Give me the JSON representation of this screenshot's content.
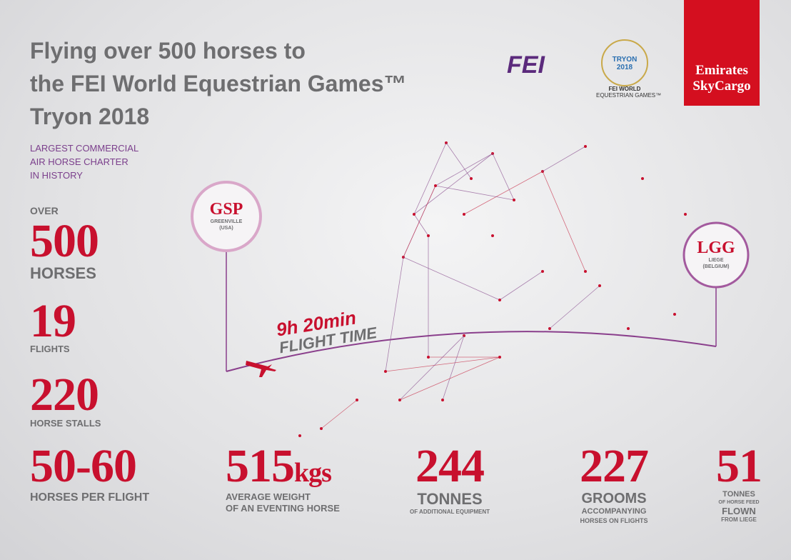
{
  "header": {
    "title": [
      "Flying over 500 horses to",
      "the FEI World Equestrian Games™",
      "Tryon 2018"
    ],
    "subtitle": [
      "LARGEST COMMERCIAL",
      "AIR HORSE CHARTER",
      "IN HISTORY"
    ]
  },
  "logos": {
    "fei": "FEI",
    "tryon": [
      "TRYON",
      "2018"
    ],
    "weg": [
      "FEI WORLD",
      "EQUESTRIAN GAMES™"
    ],
    "emirates": [
      "Emirates",
      "SkyCargo"
    ]
  },
  "route": {
    "origin": {
      "code": "GSP",
      "city": "GREENVILLE",
      "country": "(USA)"
    },
    "destination": {
      "code": "LGG",
      "city": "LIEGE",
      "country": "(BELGIUM)"
    },
    "duration": "9h 20min",
    "duration_label": "FLIGHT TIME"
  },
  "stats": {
    "horses": {
      "prefix": "OVER",
      "value": "500",
      "label": "HORSES"
    },
    "flights": {
      "value": "19",
      "label": "FLIGHTS"
    },
    "stalls": {
      "value": "220",
      "label": "HORSE STALLS"
    },
    "per_flight": {
      "value": "50-60",
      "label": "HORSES PER FLIGHT"
    },
    "weight": {
      "value": "515",
      "unit": "kgs",
      "label": [
        "AVERAGE WEIGHT",
        "OF AN EVENTING HORSE"
      ]
    },
    "equipment": {
      "value": "244",
      "label": "TONNES",
      "note": "OF ADDITIONAL EQUIPMENT"
    },
    "grooms": {
      "value": "227",
      "label": "GROOMS",
      "note": [
        "ACCOMPANYING",
        "HORSES ON FLIGHTS"
      ]
    },
    "feed": {
      "value": "51",
      "label": "TONNES",
      "note": "OF HORSE FEED",
      "label2": "FLOWN",
      "note2": "FROM LIEGE"
    }
  }
}
